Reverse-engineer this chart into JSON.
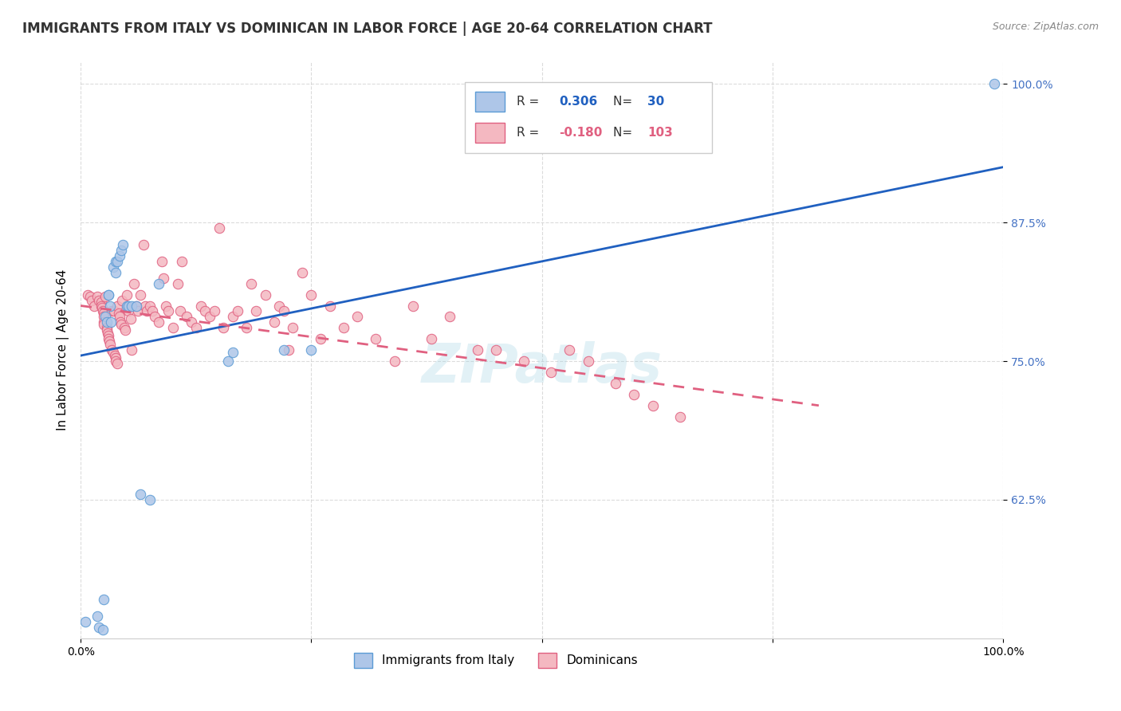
{
  "title": "IMMIGRANTS FROM ITALY VS DOMINICAN IN LABOR FORCE | AGE 20-64 CORRELATION CHART",
  "source": "Source: ZipAtlas.com",
  "xlabel": "",
  "ylabel": "In Labor Force | Age 20-64",
  "xlim": [
    0,
    1
  ],
  "ylim": [
    0.5,
    1.02
  ],
  "x_ticks": [
    0,
    0.25,
    0.5,
    0.75,
    1.0
  ],
  "x_tick_labels": [
    "0.0%",
    "",
    "",
    "",
    "100.0%"
  ],
  "y_ticks": [
    0.625,
    0.75,
    0.875,
    1.0
  ],
  "y_tick_labels": [
    "62.5%",
    "75.0%",
    "87.5%",
    "100.0%"
  ],
  "italy_color": "#aec6e8",
  "italy_color_dark": "#5b9bd5",
  "dominican_color": "#f4b8c1",
  "dominican_color_dark": "#e06080",
  "italy_R": 0.306,
  "italy_N": 30,
  "dominican_R": -0.18,
  "dominican_N": 103,
  "italy_x": [
    0.005,
    0.018,
    0.02,
    0.024,
    0.025,
    0.027,
    0.028,
    0.03,
    0.03,
    0.032,
    0.033,
    0.035,
    0.038,
    0.038,
    0.04,
    0.042,
    0.044,
    0.046,
    0.05,
    0.052,
    0.055,
    0.06,
    0.065,
    0.075,
    0.085,
    0.16,
    0.165,
    0.22,
    0.25,
    0.99
  ],
  "italy_y": [
    0.515,
    0.52,
    0.51,
    0.508,
    0.535,
    0.79,
    0.785,
    0.81,
    0.81,
    0.8,
    0.785,
    0.835,
    0.83,
    0.84,
    0.84,
    0.845,
    0.85,
    0.855,
    0.8,
    0.8,
    0.8,
    0.8,
    0.63,
    0.625,
    0.82,
    0.75,
    0.758,
    0.76,
    0.76,
    1.0
  ],
  "dom_x": [
    0.008,
    0.01,
    0.012,
    0.015,
    0.018,
    0.02,
    0.022,
    0.022,
    0.023,
    0.024,
    0.025,
    0.025,
    0.025,
    0.025,
    0.027,
    0.028,
    0.028,
    0.029,
    0.03,
    0.03,
    0.031,
    0.032,
    0.034,
    0.034,
    0.035,
    0.036,
    0.037,
    0.038,
    0.038,
    0.04,
    0.04,
    0.041,
    0.042,
    0.043,
    0.044,
    0.045,
    0.047,
    0.048,
    0.05,
    0.051,
    0.052,
    0.054,
    0.055,
    0.058,
    0.06,
    0.062,
    0.065,
    0.068,
    0.07,
    0.072,
    0.075,
    0.078,
    0.08,
    0.085,
    0.088,
    0.09,
    0.092,
    0.095,
    0.1,
    0.105,
    0.108,
    0.11,
    0.115,
    0.12,
    0.125,
    0.13,
    0.135,
    0.14,
    0.145,
    0.15,
    0.155,
    0.165,
    0.17,
    0.18,
    0.185,
    0.19,
    0.2,
    0.21,
    0.215,
    0.22,
    0.225,
    0.23,
    0.24,
    0.25,
    0.26,
    0.27,
    0.285,
    0.3,
    0.32,
    0.34,
    0.36,
    0.38,
    0.4,
    0.43,
    0.45,
    0.48,
    0.51,
    0.53,
    0.55,
    0.58,
    0.6,
    0.62,
    0.65
  ],
  "dom_y": [
    0.81,
    0.808,
    0.805,
    0.8,
    0.808,
    0.805,
    0.803,
    0.8,
    0.798,
    0.795,
    0.793,
    0.79,
    0.785,
    0.783,
    0.808,
    0.78,
    0.778,
    0.775,
    0.773,
    0.77,
    0.768,
    0.765,
    0.795,
    0.76,
    0.758,
    0.795,
    0.755,
    0.753,
    0.75,
    0.748,
    0.8,
    0.793,
    0.79,
    0.785,
    0.783,
    0.805,
    0.78,
    0.778,
    0.81,
    0.8,
    0.795,
    0.788,
    0.76,
    0.82,
    0.8,
    0.795,
    0.81,
    0.855,
    0.8,
    0.795,
    0.8,
    0.795,
    0.79,
    0.785,
    0.84,
    0.825,
    0.8,
    0.795,
    0.78,
    0.82,
    0.795,
    0.84,
    0.79,
    0.785,
    0.78,
    0.8,
    0.795,
    0.79,
    0.795,
    0.87,
    0.78,
    0.79,
    0.795,
    0.78,
    0.82,
    0.795,
    0.81,
    0.785,
    0.8,
    0.795,
    0.76,
    0.78,
    0.83,
    0.81,
    0.77,
    0.8,
    0.78,
    0.79,
    0.77,
    0.75,
    0.8,
    0.77,
    0.79,
    0.76,
    0.76,
    0.75,
    0.74,
    0.76,
    0.75,
    0.73,
    0.72,
    0.71,
    0.7
  ],
  "italy_line_x": [
    0,
    1.0
  ],
  "italy_line_y": [
    0.755,
    0.925
  ],
  "dom_line_x": [
    0,
    0.8
  ],
  "dom_line_y": [
    0.8,
    0.71
  ],
  "background_color": "#ffffff",
  "grid_color": "#cccccc",
  "title_fontsize": 12,
  "axis_label_fontsize": 11,
  "tick_fontsize": 10,
  "legend_fontsize": 11,
  "source_fontsize": 9,
  "watermark": "ZIPatlas",
  "italy_border_color": "#5b9bd5",
  "dominican_border_color": "#e06080"
}
